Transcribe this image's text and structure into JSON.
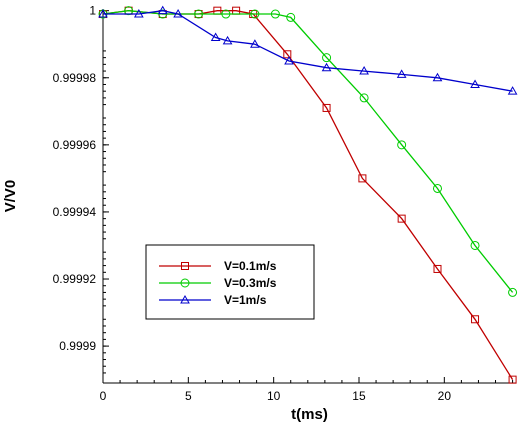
{
  "chart_data": {
    "type": "line",
    "title": "",
    "xlabel": "t(ms)",
    "ylabel": "V/V0",
    "xlim": [
      0,
      24.2
    ],
    "ylim": [
      0.999889,
      1.0000005
    ],
    "grid": false,
    "legend_position": "lower-left",
    "x_ticks": [
      0,
      5,
      10,
      15,
      20
    ],
    "x_tick_labels": [
      "0",
      "5",
      "10",
      "15",
      "20"
    ],
    "y_ticks": [
      1.0,
      0.99998,
      0.99996,
      0.99994,
      0.99992,
      0.9999
    ],
    "y_tick_labels": [
      "1",
      "0.99998",
      "0.99996",
      "0.99994",
      "0.99992",
      "0.9999"
    ],
    "series": [
      {
        "name": "V=0.1m/s",
        "color": "#c00000",
        "marker": "square",
        "x": [
          0,
          1.5,
          3.5,
          5.6,
          6.7,
          7.8,
          8.8,
          10.8,
          13.1,
          15.2,
          17.5,
          19.6,
          21.8,
          24.0
        ],
        "y": [
          0.999999,
          1.0,
          0.999999,
          0.999999,
          1.0,
          1.0,
          0.999999,
          0.999987,
          0.999971,
          0.99995,
          0.999938,
          0.999923,
          0.999908,
          0.99989
        ]
      },
      {
        "name": "V=0.3m/s",
        "color": "#00cc00",
        "marker": "circle",
        "x": [
          0,
          1.5,
          3.5,
          5.6,
          7.2,
          8.9,
          10.1,
          11.0,
          13.1,
          15.3,
          17.5,
          19.6,
          21.8,
          24.0
        ],
        "y": [
          0.999999,
          1.0,
          0.999999,
          0.999999,
          0.999999,
          0.999999,
          0.999999,
          0.999998,
          0.999986,
          0.999974,
          0.99996,
          0.999947,
          0.99993,
          0.999916
        ]
      },
      {
        "name": "V=1m/s",
        "color": "#0000cc",
        "marker": "triangle",
        "x": [
          0,
          2.1,
          3.5,
          4.4,
          6.6,
          7.3,
          8.9,
          10.9,
          13.1,
          15.3,
          17.5,
          19.6,
          21.8,
          24.0
        ],
        "y": [
          0.999999,
          0.999999,
          1.0,
          0.999999,
          0.999992,
          0.999991,
          0.99999,
          0.999985,
          0.999983,
          0.999982,
          0.999981,
          0.99998,
          0.999978,
          0.999976
        ]
      }
    ]
  }
}
